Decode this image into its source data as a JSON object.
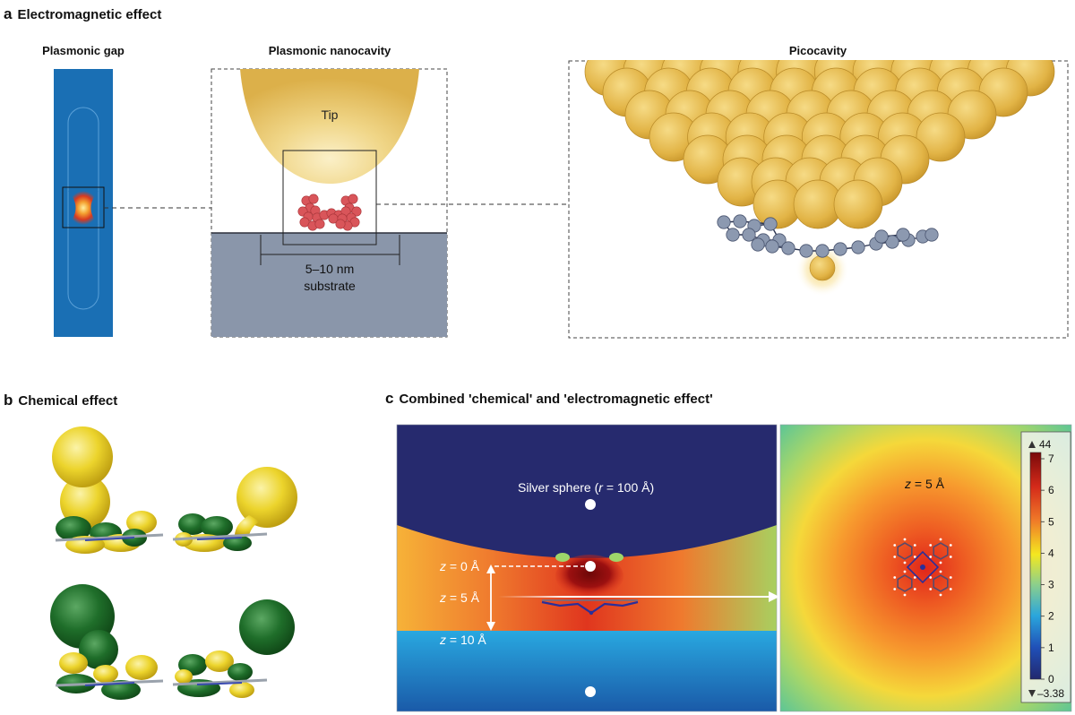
{
  "panel_a": {
    "letter": "a",
    "title": "Electromagnetic effect",
    "sub_titles": {
      "gap": "Plasmonic gap",
      "nanocavity": "Plasmonic nanocavity",
      "picocavity": "Picocavity"
    },
    "tip_label": "Tip",
    "size_label": "5–10 nm",
    "substrate_label": "substrate"
  },
  "panel_b": {
    "letter": "b",
    "title": "Chemical effect"
  },
  "panel_c": {
    "letter": "c",
    "title": "Combined 'chemical' and 'electromagnetic effect'",
    "sphere_label_pre": "Silver sphere (",
    "sphere_label_r": "r",
    "sphere_label_post": " = 100 Å)",
    "z_var": "z",
    "z0": " = 0 Å",
    "z5": " = 5 Å",
    "z10": " = 10 Å",
    "right_z_label": " = 5 Å",
    "colorbar": {
      "max_label": "44",
      "min_label": "–3.38",
      "ticks": [
        "7",
        "6",
        "5",
        "4",
        "3",
        "2",
        "1",
        "0"
      ],
      "colors": [
        "#7a0a0a",
        "#d42a1a",
        "#f07a28",
        "#f4e820",
        "#8ed08a",
        "#2aa6dc",
        "#2050b8",
        "#22286e"
      ]
    }
  },
  "colors": {
    "gold": "#e3b64a",
    "gold_light": "#f3d98a",
    "molecule_red": "#d9555a",
    "molecule_gray": "#8c99b0",
    "substrate": "#8a96aa",
    "gap_blue": "#1a6fb4",
    "navy": "#262a6e",
    "orbital_yellow": "#eed735",
    "orbital_green": "#1f6e2a"
  }
}
